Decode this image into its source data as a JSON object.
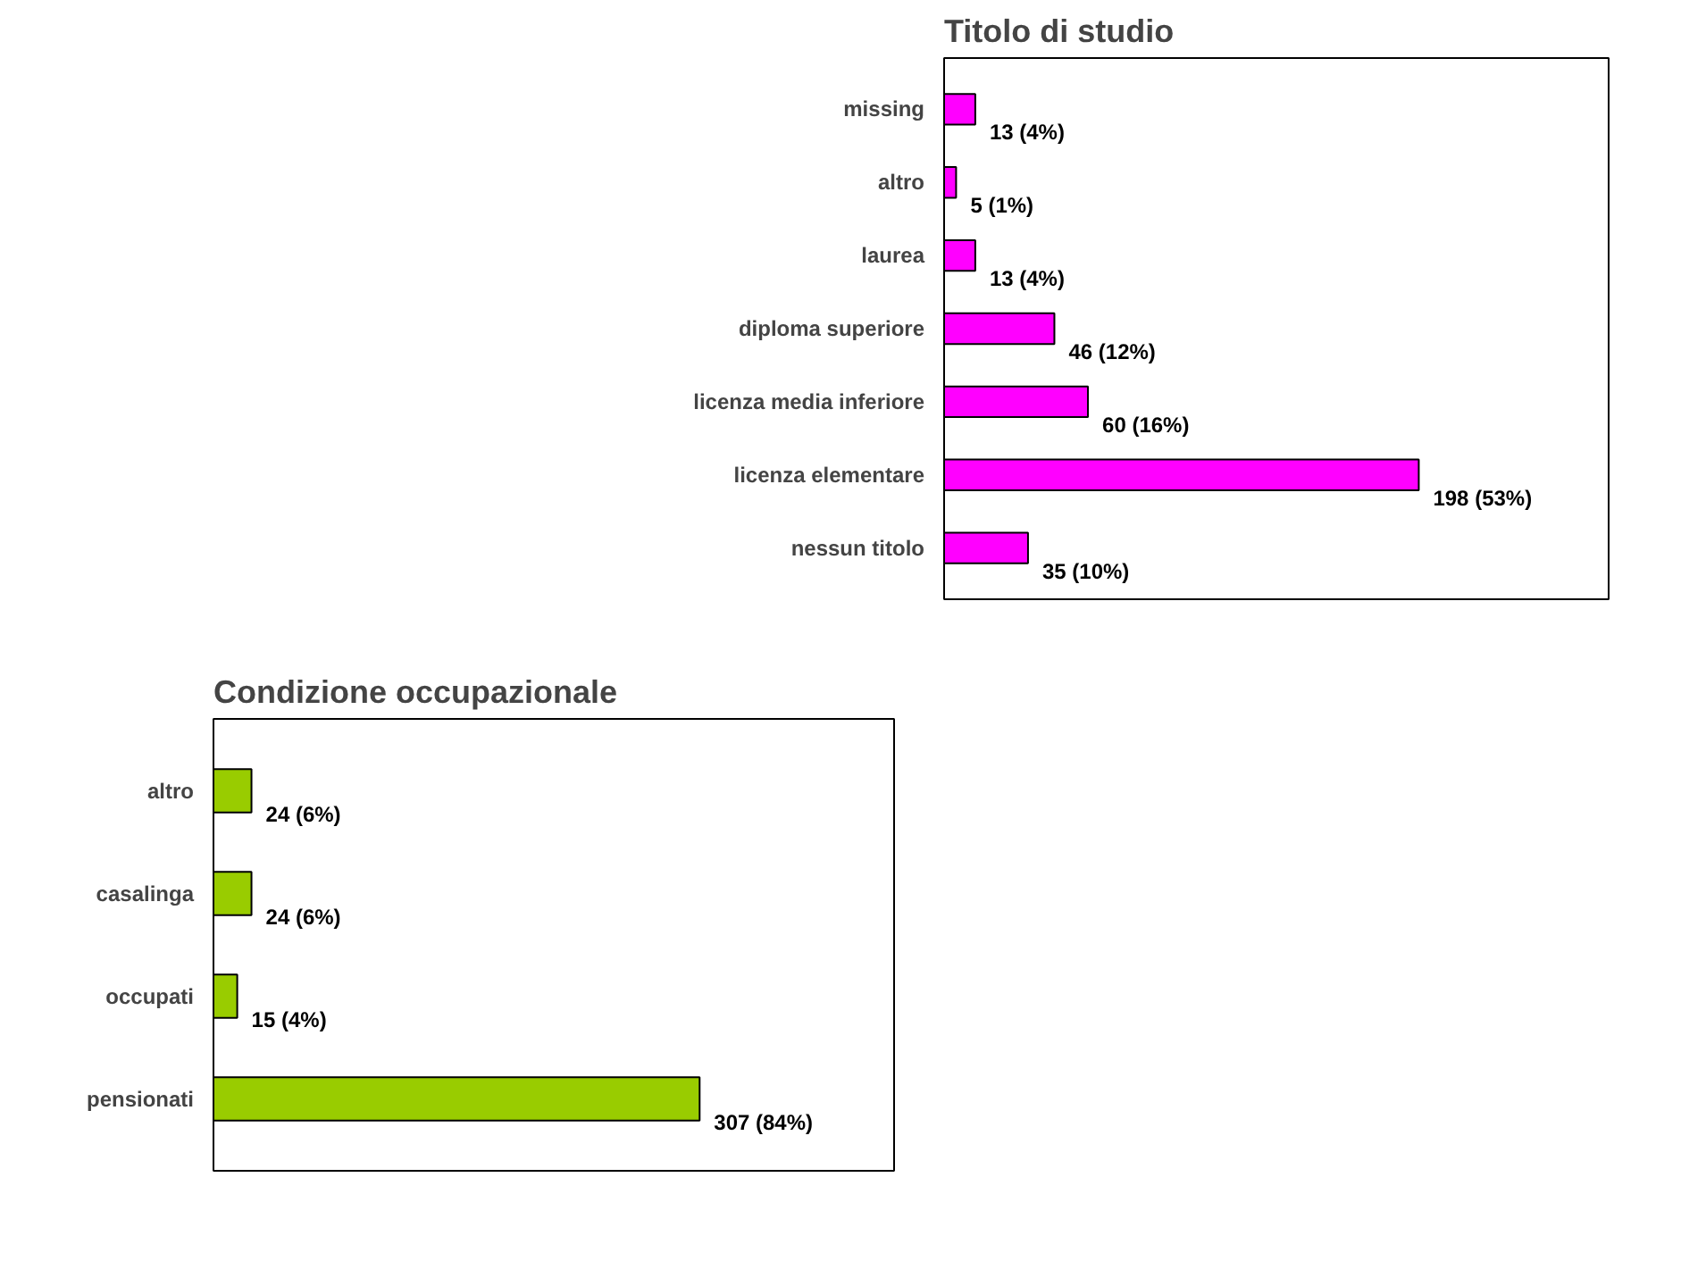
{
  "chart_data": [
    {
      "type": "bar",
      "orientation": "horizontal",
      "title": "Titolo di studio",
      "categories": [
        "missing",
        "altro",
        "laurea",
        "diploma superiore",
        "licenza media inferiore",
        "licenza elementare",
        "nessun titolo"
      ],
      "values": [
        13,
        5,
        13,
        46,
        60,
        198,
        35
      ],
      "color": "#ff00ff",
      "value_labels": [
        "13 (4%)",
        "5 (1%)",
        "13 (4%)",
        "46 (12%)",
        "60 (16%)",
        "198 (53%)",
        "35 (10%)"
      ]
    },
    {
      "type": "bar",
      "orientation": "horizontal",
      "title": "Condizione occupazionale",
      "categories": [
        "altro",
        "casalinga",
        "occupati",
        "pensionati"
      ],
      "values": [
        24,
        24,
        15,
        307
      ],
      "color": "#99cc00",
      "value_labels": [
        "24 (6%)",
        "24 (6%)",
        "15 (4%)",
        "307 (84%)"
      ]
    }
  ]
}
